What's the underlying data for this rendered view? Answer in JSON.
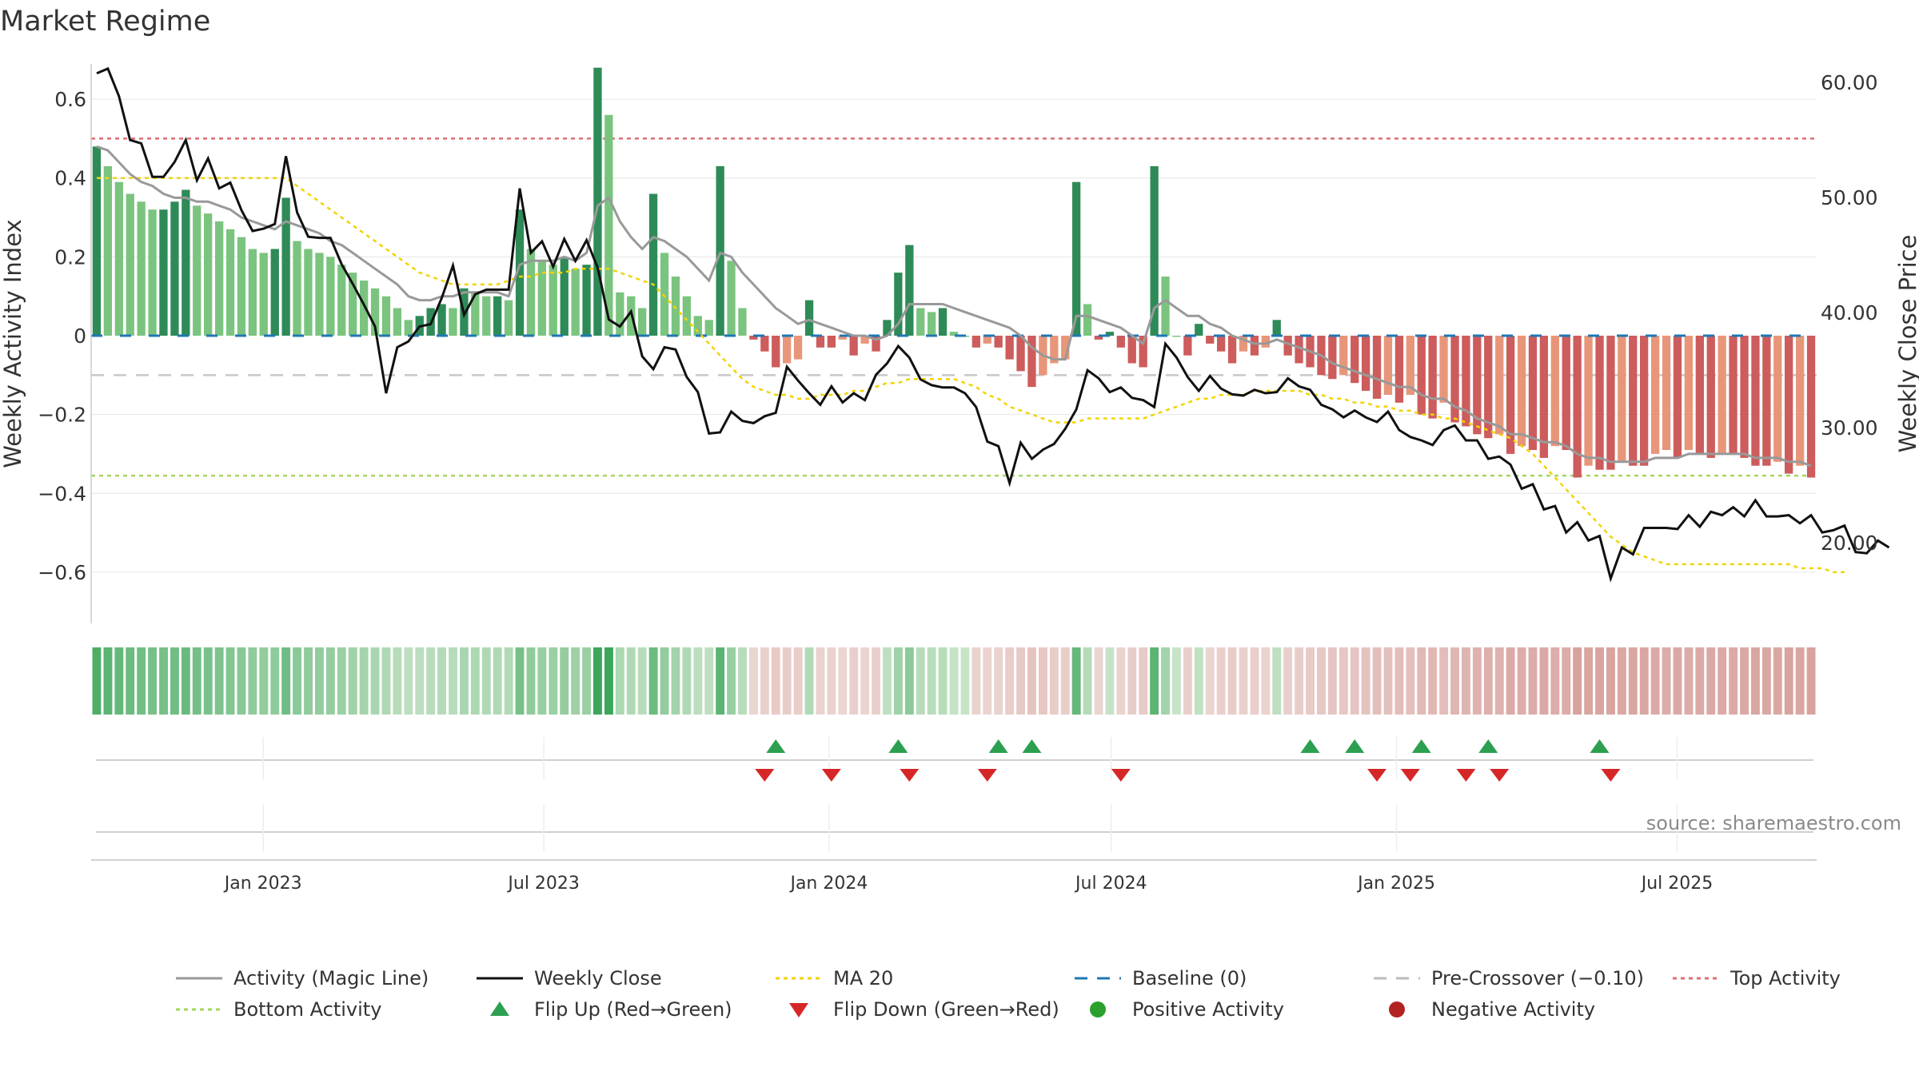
{
  "chart_data": {
    "type": "bar",
    "title": "Market Regime",
    "ylabel_left": "Weekly Activity Index",
    "ylabel_right": "Weekly Close Price",
    "ylim_left": [
      -0.73,
      0.73
    ],
    "ylim_right": [
      13.0,
      63.0
    ],
    "yticks_left": [
      {
        "value": 0.6,
        "label": "0.6"
      },
      {
        "value": 0.4,
        "label": "0.4"
      },
      {
        "value": 0.2,
        "label": "0.2"
      },
      {
        "value": 0,
        "label": "0"
      },
      {
        "value": -0.2,
        "label": "−0.2"
      },
      {
        "value": -0.4,
        "label": "−0.4"
      },
      {
        "value": -0.6,
        "label": "−0.6"
      }
    ],
    "yticks_right": [
      {
        "value": 60,
        "label": "60.00"
      },
      {
        "value": 50,
        "label": "50.00"
      },
      {
        "value": 40,
        "label": "40.00"
      },
      {
        "value": 30,
        "label": "30.00"
      },
      {
        "value": 20,
        "label": "20.00"
      }
    ],
    "x_start": "2022-09-12",
    "x_end": "2025-09-29",
    "xticks": [
      {
        "date": "2023-01-01",
        "label": "Jan 2023"
      },
      {
        "date": "2023-07-01",
        "label": "Jul 2023"
      },
      {
        "date": "2024-01-01",
        "label": "Jan 2024"
      },
      {
        "date": "2024-07-01",
        "label": "Jul 2024"
      },
      {
        "date": "2025-01-01",
        "label": "Jan 2025"
      },
      {
        "date": "2025-07-01",
        "label": "Jul 2025"
      }
    ],
    "reference_lines": {
      "top_activity": 0.5,
      "bottom_activity": -0.355,
      "pre_crossover": -0.1,
      "baseline": 0
    },
    "activity_bars": [
      0.48,
      0.43,
      0.39,
      0.36,
      0.34,
      0.32,
      0.32,
      0.34,
      0.37,
      0.33,
      0.31,
      0.29,
      0.27,
      0.25,
      0.22,
      0.21,
      0.22,
      0.35,
      0.24,
      0.22,
      0.21,
      0.2,
      0.18,
      0.16,
      0.14,
      0.12,
      0.1,
      0.07,
      0.04,
      0.05,
      0.07,
      0.08,
      0.07,
      0.12,
      0.11,
      0.1,
      0.1,
      0.09,
      0.32,
      0.22,
      0.19,
      0.18,
      0.2,
      0.17,
      0.18,
      0.68,
      0.56,
      0.11,
      0.1,
      0.07,
      0.36,
      0.21,
      0.15,
      0.1,
      0.05,
      0.04,
      0.43,
      0.19,
      0.07,
      -0.01,
      -0.04,
      -0.08,
      -0.07,
      -0.06,
      0.09,
      -0.03,
      -0.03,
      -0.01,
      -0.05,
      -0.02,
      -0.04,
      0.04,
      0.16,
      0.23,
      0.07,
      0.06,
      0.07,
      0.01,
      0.0,
      -0.03,
      -0.02,
      -0.03,
      -0.06,
      -0.09,
      -0.13,
      -0.1,
      -0.07,
      -0.06,
      0.39,
      0.08,
      -0.01,
      0.01,
      -0.03,
      -0.07,
      -0.08,
      0.43,
      0.15,
      0.0,
      -0.05,
      0.03,
      -0.02,
      -0.04,
      -0.07,
      -0.04,
      -0.05,
      -0.03,
      0.04,
      -0.05,
      -0.07,
      -0.08,
      -0.1,
      -0.11,
      -0.1,
      -0.12,
      -0.14,
      -0.16,
      -0.15,
      -0.17,
      -0.15,
      -0.2,
      -0.21,
      -0.17,
      -0.22,
      -0.23,
      -0.25,
      -0.26,
      -0.25,
      -0.3,
      -0.28,
      -0.29,
      -0.31,
      -0.28,
      -0.29,
      -0.36,
      -0.33,
      -0.34,
      -0.34,
      -0.32,
      -0.33,
      -0.33,
      -0.3,
      -0.29,
      -0.31,
      -0.29,
      -0.3,
      -0.31,
      -0.3,
      -0.3,
      -0.31,
      -0.33,
      -0.33,
      -0.32,
      -0.35,
      -0.33,
      -0.36
    ],
    "weekly_close": [
      60.8,
      61.2,
      58.8,
      55.0,
      54.7,
      51.8,
      51.8,
      53.1,
      55.0,
      51.5,
      53.4,
      50.8,
      51.3,
      48.9,
      47.1,
      47.3,
      47.7,
      53.6,
      48.7,
      46.6,
      46.5,
      46.5,
      44.2,
      42.5,
      40.7,
      38.8,
      33.0,
      37.0,
      37.5,
      38.8,
      39.0,
      41.3,
      44.1,
      39.8,
      41.6,
      42.0,
      42.0,
      42.0,
      50.8,
      45.2,
      46.2,
      44.0,
      46.4,
      44.5,
      46.3,
      43.9,
      39.4,
      38.8,
      40.1,
      36.2,
      35.1,
      37.0,
      36.8,
      34.4,
      33.1,
      29.5,
      29.6,
      31.4,
      30.6,
      30.4,
      31.0,
      31.3,
      35.3,
      34.1,
      33.0,
      32.0,
      33.6,
      32.2,
      33.0,
      32.4,
      34.6,
      35.6,
      37.1,
      36.1,
      34.2,
      33.7,
      33.5,
      33.5,
      33.0,
      31.8,
      28.8,
      28.4,
      25.2,
      28.7,
      27.3,
      28.1,
      28.6,
      29.9,
      31.6,
      35.0,
      34.3,
      33.1,
      33.5,
      32.6,
      32.4,
      31.8,
      37.3,
      36.1,
      34.4,
      33.2,
      34.5,
      33.4,
      32.9,
      32.8,
      33.3,
      33.0,
      33.1,
      34.3,
      33.6,
      33.3,
      32.0,
      31.6,
      30.9,
      31.5,
      30.9,
      30.5,
      31.4,
      29.8,
      29.2,
      28.9,
      28.5,
      29.8,
      30.2,
      28.9,
      28.9,
      27.3,
      27.5,
      26.8,
      24.7,
      25.1,
      22.9,
      23.2,
      20.9,
      21.8,
      20.2,
      20.6,
      16.9,
      19.6,
      19.0,
      21.3,
      21.3,
      21.3,
      21.2,
      22.4,
      21.4,
      22.7,
      22.4,
      23.1,
      22.3,
      23.7,
      22.3,
      22.3,
      22.4,
      21.7,
      22.4,
      20.9,
      21.1,
      21.5,
      19.2,
      19.1,
      20.2,
      19.6
    ],
    "magic_line": [
      0.48,
      0.47,
      0.44,
      0.41,
      0.39,
      0.38,
      0.36,
      0.35,
      0.35,
      0.34,
      0.34,
      0.33,
      0.32,
      0.3,
      0.29,
      0.28,
      0.27,
      0.29,
      0.28,
      0.27,
      0.26,
      0.24,
      0.23,
      0.21,
      0.19,
      0.17,
      0.15,
      0.13,
      0.1,
      0.09,
      0.09,
      0.1,
      0.1,
      0.11,
      0.11,
      0.11,
      0.11,
      0.1,
      0.18,
      0.19,
      0.19,
      0.19,
      0.2,
      0.19,
      0.21,
      0.33,
      0.35,
      0.29,
      0.25,
      0.22,
      0.25,
      0.24,
      0.22,
      0.2,
      0.17,
      0.14,
      0.21,
      0.2,
      0.16,
      0.13,
      0.1,
      0.07,
      0.05,
      0.03,
      0.04,
      0.03,
      0.02,
      0.01,
      0.0,
      -0.0,
      -0.01,
      0.0,
      0.03,
      0.08,
      0.08,
      0.08,
      0.08,
      0.07,
      0.06,
      0.05,
      0.04,
      0.03,
      0.02,
      0.0,
      -0.03,
      -0.05,
      -0.06,
      -0.06,
      0.05,
      0.05,
      0.04,
      0.03,
      0.02,
      0.0,
      -0.02,
      0.07,
      0.09,
      0.07,
      0.05,
      0.05,
      0.03,
      0.02,
      0.0,
      -0.01,
      -0.02,
      -0.02,
      -0.01,
      -0.02,
      -0.03,
      -0.04,
      -0.05,
      -0.07,
      -0.08,
      -0.09,
      -0.1,
      -0.11,
      -0.12,
      -0.13,
      -0.13,
      -0.15,
      -0.16,
      -0.16,
      -0.18,
      -0.19,
      -0.21,
      -0.22,
      -0.23,
      -0.25,
      -0.25,
      -0.26,
      -0.27,
      -0.27,
      -0.28,
      -0.3,
      -0.31,
      -0.31,
      -0.32,
      -0.32,
      -0.32,
      -0.32,
      -0.31,
      -0.31,
      -0.31,
      -0.3,
      -0.3,
      -0.3,
      -0.3,
      -0.3,
      -0.3,
      -0.31,
      -0.31,
      -0.31,
      -0.32,
      -0.32,
      -0.33
    ],
    "ma20": [
      0.4,
      0.4,
      0.4,
      0.4,
      0.4,
      0.4,
      0.4,
      0.4,
      0.4,
      0.4,
      0.4,
      0.4,
      0.4,
      0.4,
      0.4,
      0.4,
      0.4,
      0.4,
      0.38,
      0.36,
      0.34,
      0.32,
      0.3,
      0.28,
      0.26,
      0.24,
      0.22,
      0.2,
      0.18,
      0.16,
      0.15,
      0.14,
      0.13,
      0.13,
      0.13,
      0.13,
      0.13,
      0.14,
      0.15,
      0.15,
      0.16,
      0.16,
      0.16,
      0.17,
      0.17,
      0.17,
      0.17,
      0.16,
      0.15,
      0.14,
      0.13,
      0.1,
      0.07,
      0.04,
      0.01,
      -0.02,
      -0.05,
      -0.08,
      -0.11,
      -0.13,
      -0.14,
      -0.15,
      -0.15,
      -0.16,
      -0.16,
      -0.15,
      -0.15,
      -0.15,
      -0.14,
      -0.14,
      -0.13,
      -0.12,
      -0.12,
      -0.11,
      -0.11,
      -0.11,
      -0.11,
      -0.11,
      -0.12,
      -0.13,
      -0.15,
      -0.16,
      -0.18,
      -0.19,
      -0.2,
      -0.21,
      -0.22,
      -0.22,
      -0.22,
      -0.21,
      -0.21,
      -0.21,
      -0.21,
      -0.21,
      -0.21,
      -0.2,
      -0.19,
      -0.18,
      -0.17,
      -0.16,
      -0.16,
      -0.15,
      -0.15,
      -0.15,
      -0.14,
      -0.14,
      -0.14,
      -0.14,
      -0.14,
      -0.15,
      -0.15,
      -0.16,
      -0.16,
      -0.17,
      -0.17,
      -0.18,
      -0.18,
      -0.19,
      -0.19,
      -0.2,
      -0.2,
      -0.21,
      -0.21,
      -0.22,
      -0.23,
      -0.24,
      -0.25,
      -0.26,
      -0.28,
      -0.3,
      -0.33,
      -0.36,
      -0.39,
      -0.42,
      -0.45,
      -0.48,
      -0.51,
      -0.53,
      -0.55,
      -0.56,
      -0.57,
      -0.58,
      -0.58,
      -0.58,
      -0.58,
      -0.58,
      -0.58,
      -0.58,
      -0.58,
      -0.58,
      -0.58,
      -0.58,
      -0.58,
      -0.59,
      -0.59,
      -0.59,
      -0.6,
      -0.6
    ],
    "flip_up_weeks": [
      61,
      72,
      81,
      84,
      109,
      113,
      119,
      125,
      135
    ],
    "flip_down_weeks": [
      60,
      66,
      73,
      80,
      92,
      115,
      118,
      123,
      126,
      136
    ],
    "source": "source: sharemaestro.com",
    "legend": [
      {
        "label": "Activity (Magic Line)",
        "style": "line",
        "color": "#999999"
      },
      {
        "label": "Weekly Close",
        "style": "line",
        "color": "#111111"
      },
      {
        "label": "MA 20",
        "style": "dotted",
        "color": "#f2d300"
      },
      {
        "label": "Baseline (0)",
        "style": "dash",
        "color": "#1f77b4"
      },
      {
        "label": "Pre-Crossover (−0.10)",
        "style": "dash",
        "color": "#bbbbbb"
      },
      {
        "label": "Top Activity",
        "style": "dotted",
        "color": "#e06c75"
      },
      {
        "label": "Bottom Activity",
        "style": "dotted",
        "color": "#a4d65e"
      },
      {
        "label": "Flip Up (Red→Green)",
        "style": "tri-up",
        "color": "#2ca050"
      },
      {
        "label": "Flip Down (Green→Red)",
        "style": "tri-down",
        "color": "#d62728"
      },
      {
        "label": "Positive Activity",
        "style": "dot",
        "color": "#2ca02c"
      },
      {
        "label": "Negative Activity",
        "style": "dot",
        "color": "#b22222"
      }
    ],
    "colors": {
      "pos_strong": "#2e8b57",
      "pos_light": "#7bc47f",
      "neg_strong": "#cd5c5c",
      "neg_light": "#e8967a",
      "grid": "#e6e6e6"
    }
  }
}
